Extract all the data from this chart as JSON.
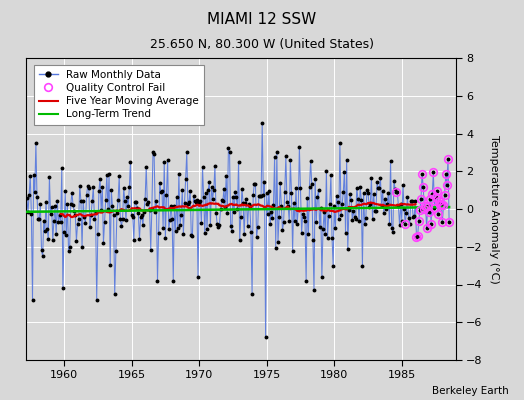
{
  "title": "MIAMI 12 SSW",
  "subtitle": "25.650 N, 80.300 W (United States)",
  "ylabel": "Temperature Anomaly (°C)",
  "credit": "Berkeley Earth",
  "xlim": [
    1957.2,
    1989.0
  ],
  "ylim": [
    -8,
    8
  ],
  "yticks": [
    -8,
    -6,
    -4,
    -2,
    0,
    2,
    4,
    6,
    8
  ],
  "xticks": [
    1960,
    1965,
    1970,
    1975,
    1980,
    1985
  ],
  "bg_color": "#d8d8d8",
  "plot_bg_color": "#d8d8d8",
  "line_color": "#5577dd",
  "dot_color": "#000000",
  "ma_color": "#dd0000",
  "trend_color": "#00bb00",
  "qc_color": "#ff44ff",
  "grid_color": "#ffffff",
  "figsize": [
    5.24,
    4.0
  ],
  "dpi": 100,
  "title_fontsize": 11,
  "subtitle_fontsize": 9,
  "tick_fontsize": 8,
  "legend_fontsize": 7.5,
  "ylabel_fontsize": 8
}
